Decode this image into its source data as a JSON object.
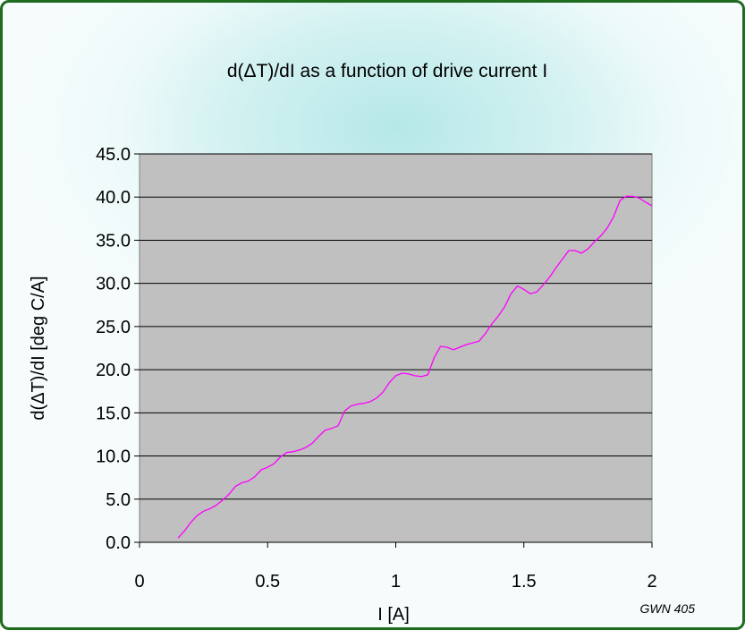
{
  "chart_data": {
    "type": "line",
    "title": "d(ΔT)/dI as a function of drive current I",
    "xlabel": "I [A]",
    "ylabel": "d(ΔT)/dI [deg C/A]",
    "xlim": [
      0,
      2
    ],
    "ylim": [
      0,
      45
    ],
    "x_ticks": [
      "0",
      "0.5",
      "1",
      "1.5",
      "2"
    ],
    "y_ticks": [
      "0.0",
      "5.0",
      "10.0",
      "15.0",
      "20.0",
      "25.0",
      "30.0",
      "35.0",
      "40.0",
      "45.0"
    ],
    "grid": "horizontal",
    "plot_background": "#c0c0c0",
    "series": [
      {
        "color": "#ff00ff",
        "x": [
          0.15,
          0.175,
          0.2,
          0.225,
          0.25,
          0.275,
          0.3,
          0.325,
          0.35,
          0.375,
          0.4,
          0.425,
          0.45,
          0.475,
          0.5,
          0.525,
          0.55,
          0.575,
          0.6,
          0.625,
          0.65,
          0.675,
          0.7,
          0.725,
          0.75,
          0.775,
          0.8,
          0.825,
          0.85,
          0.875,
          0.9,
          0.925,
          0.95,
          0.975,
          1.0,
          1.025,
          1.05,
          1.075,
          1.1,
          1.125,
          1.15,
          1.175,
          1.2,
          1.225,
          1.25,
          1.275,
          1.3,
          1.325,
          1.35,
          1.375,
          1.4,
          1.425,
          1.45,
          1.475,
          1.5,
          1.525,
          1.55,
          1.575,
          1.6,
          1.625,
          1.65,
          1.675,
          1.7,
          1.725,
          1.75,
          1.775,
          1.8,
          1.825,
          1.85,
          1.875,
          1.9,
          1.925,
          1.95,
          1.975,
          2.0
        ],
        "y": [
          0.5,
          1.3,
          2.3,
          3.1,
          3.6,
          3.9,
          4.3,
          4.9,
          5.6,
          6.5,
          6.9,
          7.1,
          7.6,
          8.4,
          8.7,
          9.1,
          9.9,
          10.4,
          10.5,
          10.7,
          11.0,
          11.5,
          12.3,
          13.0,
          13.2,
          13.5,
          15.2,
          15.8,
          16.0,
          16.1,
          16.3,
          16.7,
          17.4,
          18.5,
          19.3,
          19.6,
          19.5,
          19.3,
          19.2,
          19.4,
          21.4,
          22.7,
          22.6,
          22.3,
          22.6,
          22.9,
          23.1,
          23.3,
          24.2,
          25.3,
          26.2,
          27.3,
          28.8,
          29.7,
          29.3,
          28.8,
          29.0,
          29.8,
          30.7,
          31.8,
          32.8,
          33.8,
          33.8,
          33.5,
          34.0,
          34.8,
          35.5,
          36.4,
          37.7,
          39.6,
          40.1,
          40.1,
          39.9,
          39.4,
          39.0
        ]
      }
    ],
    "footnote": "GWN 405"
  },
  "colors": {
    "frame_border": "#1f6b1f",
    "gridline": "#000000",
    "line": "#ff00ff"
  }
}
